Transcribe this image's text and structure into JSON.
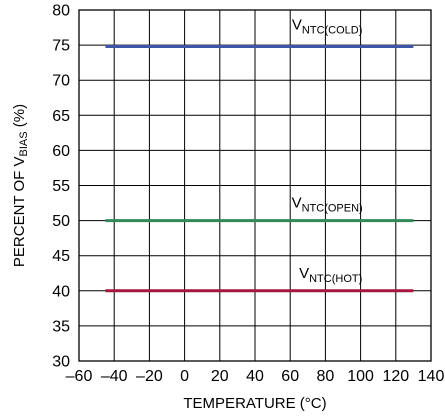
{
  "chart_data": {
    "type": "line",
    "title": "",
    "xlabel": "TEMPERATURE (°C)",
    "ylabel": {
      "prefix": "PERCENT OF V",
      "sub": "BIAS",
      "suffix": " (%)"
    },
    "xlim": [
      -60,
      140
    ],
    "ylim": [
      30,
      80
    ],
    "xticks": [
      -60,
      -40,
      -20,
      0,
      20,
      40,
      60,
      80,
      100,
      120,
      140
    ],
    "xtick_labels": [
      "–60",
      "–40",
      "–20",
      "0",
      "20",
      "40",
      "60",
      "80",
      "100",
      "120",
      "140"
    ],
    "yticks": [
      30,
      35,
      40,
      45,
      50,
      55,
      60,
      65,
      70,
      75,
      80
    ],
    "ytick_labels": [
      "30",
      "35",
      "40",
      "45",
      "50",
      "55",
      "60",
      "65",
      "70",
      "75",
      "80"
    ],
    "grid": true,
    "legend": "none",
    "series": [
      {
        "name": "VNTC(COLD)",
        "color": "#3d55a7",
        "x": [
          -45,
          130
        ],
        "y": [
          74.8,
          74.8
        ],
        "label": {
          "main": "V",
          "sub": "NTC(COLD)",
          "at_x": 81,
          "at_y": 77.2
        }
      },
      {
        "name": "VNTC(OPEN)",
        "color": "#2f8a57",
        "x": [
          -45,
          130
        ],
        "y": [
          50.0,
          50.0
        ],
        "label": {
          "main": "V",
          "sub": "NTC(OPEN)",
          "at_x": 81,
          "at_y": 51.9
        }
      },
      {
        "name": "VNTC(HOT)",
        "color": "#a3173d",
        "x": [
          -45,
          130
        ],
        "y": [
          40.0,
          40.0
        ],
        "label": {
          "main": "V",
          "sub": "NTC(HOT)",
          "at_x": 83,
          "at_y": 41.8
        }
      }
    ]
  }
}
